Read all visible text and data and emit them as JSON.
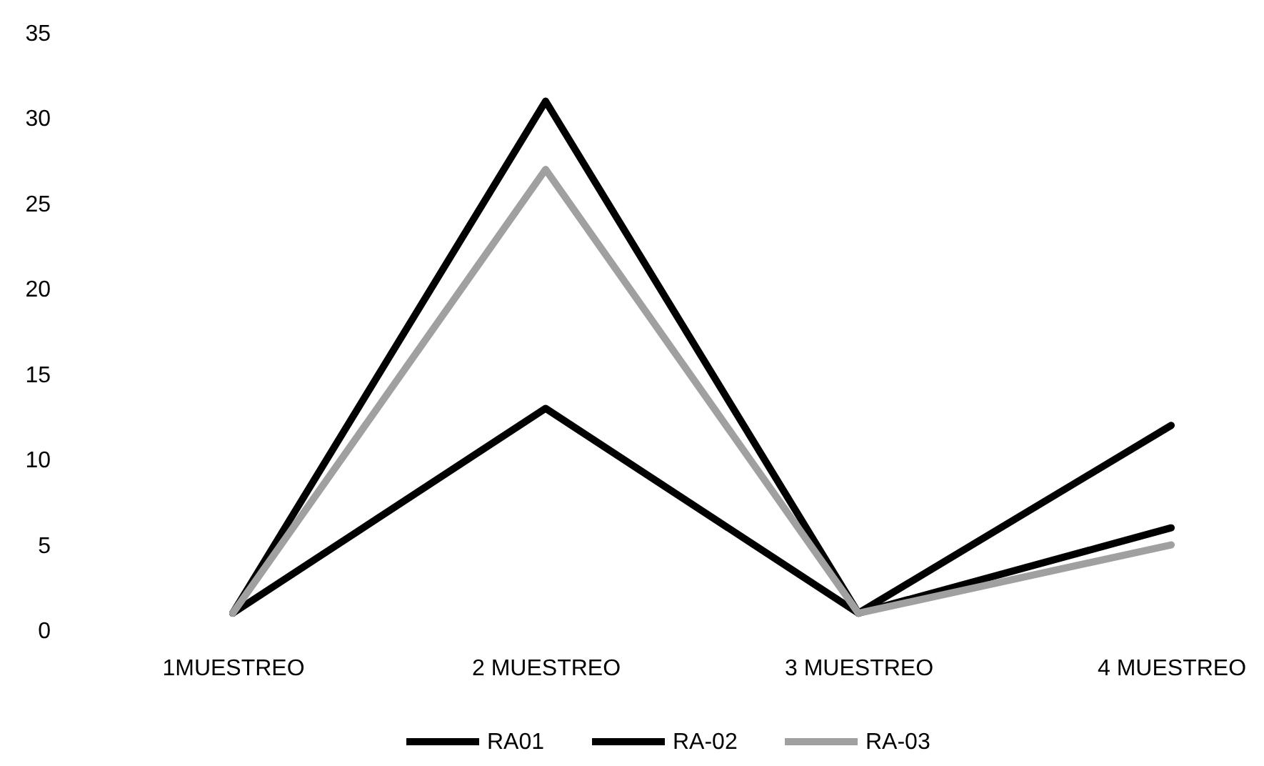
{
  "chart_data": {
    "type": "line",
    "categories": [
      "1MUESTREO",
      "2 MUESTREO",
      "3 MUESTREO",
      "4 MUESTREO"
    ],
    "series": [
      {
        "name": "RA01",
        "color": "#000000",
        "values": [
          1,
          31,
          1,
          12
        ]
      },
      {
        "name": "RA-02",
        "color": "#000000",
        "values": [
          1,
          13,
          1,
          6
        ]
      },
      {
        "name": "RA-03",
        "color": "#a0a0a0",
        "values": [
          1,
          27,
          1,
          5
        ]
      }
    ],
    "ylim": [
      0,
      35
    ],
    "yticks": [
      0,
      5,
      10,
      15,
      20,
      25,
      30,
      35
    ],
    "legend": "bottom",
    "line_style": "solid"
  }
}
